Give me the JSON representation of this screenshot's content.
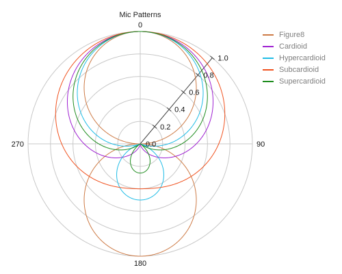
{
  "chart_data": {
    "type": "polar-line",
    "title": "Mic Patterns",
    "angular_ticks": [
      "0",
      "90",
      "180",
      "270"
    ],
    "angular_direction": "clockwise",
    "angular_zero": "top",
    "radial_range": [
      0,
      1.0
    ],
    "radial_ticks": [
      "0.0",
      "0.2",
      "0.4",
      "0.6",
      "0.8",
      "1.0"
    ],
    "grid": true,
    "legend_position": "right",
    "series": [
      {
        "name": "Figure8",
        "color": "#cd7a45",
        "formula": "|cos θ|",
        "a": 0.0,
        "b": 1.0,
        "abs": true
      },
      {
        "name": "Cardioid",
        "color": "#9e1fd1",
        "formula": "0.5 + 0.5·cos θ",
        "a": 0.5,
        "b": 0.5,
        "abs": false
      },
      {
        "name": "Hypercardioid",
        "color": "#1fbce6",
        "formula": "|0.25 + 0.75·cos θ|",
        "a": 0.25,
        "b": 0.75,
        "abs": true
      },
      {
        "name": "Subcardioid",
        "color": "#f0511e",
        "formula": "0.7 + 0.3·cos θ",
        "a": 0.7,
        "b": 0.3,
        "abs": false
      },
      {
        "name": "Supercardioid",
        "color": "#1e8c1e",
        "formula": "|0.37 + 0.63·cos θ|",
        "a": 0.37,
        "b": 0.63,
        "abs": true
      }
    ]
  }
}
